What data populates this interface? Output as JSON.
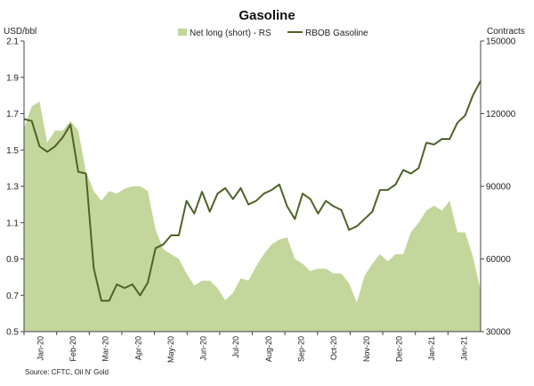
{
  "chart_data": {
    "type": "line",
    "title": "Gasoline",
    "ylabel_left": "USD/bbl",
    "ylabel_right": "Contracts",
    "ylim_left": [
      0.5,
      2.1
    ],
    "ylim_right": [
      30000,
      150000
    ],
    "yticks_left": [
      "2.1",
      "1.9",
      "1.7",
      "1.5",
      "1.3",
      "1.1",
      "0.9",
      "0.7",
      "0.5"
    ],
    "yticks_right": [
      "150000",
      "120000",
      "90000",
      "60000",
      "30000"
    ],
    "xticks": [
      "Jan-20",
      "Feb-20",
      "Mar-20",
      "Apr-20",
      "May-20",
      "Jun-20",
      "Jul-20",
      "Aug-20",
      "Sep-20",
      "Oct-20",
      "Nov-20",
      "Dec-20",
      "Jan-21",
      "Jan-21"
    ],
    "grid": false,
    "legend_position": "top-center",
    "series": [
      {
        "name": "Net long (short) - RS",
        "kind": "area",
        "axis": "right",
        "color": "#c3d69b",
        "values": [
          114000,
          123000,
          125000,
          108000,
          113000,
          113000,
          117000,
          113000,
          96000,
          88000,
          84000,
          88000,
          87000,
          89000,
          90000,
          90000,
          88000,
          72000,
          64000,
          62000,
          60000,
          54000,
          49000,
          51000,
          51000,
          48000,
          43000,
          46000,
          52000,
          51000,
          57000,
          62000,
          66000,
          68000,
          69000,
          60000,
          58000,
          55000,
          56000,
          56000,
          54000,
          54000,
          50000,
          42000,
          53000,
          58000,
          62000,
          59000,
          62000,
          62000,
          71000,
          75000,
          80000,
          82000,
          80000,
          84000,
          71000,
          71000,
          61000,
          47000
        ]
      },
      {
        "name": "RBOB Gasoline",
        "kind": "line",
        "axis": "left",
        "color": "#4f6228",
        "values": [
          1.67,
          1.66,
          1.52,
          1.49,
          1.52,
          1.57,
          1.64,
          1.38,
          1.37,
          0.85,
          0.67,
          0.67,
          0.76,
          0.74,
          0.76,
          0.7,
          0.77,
          0.96,
          0.98,
          1.03,
          1.03,
          1.22,
          1.15,
          1.27,
          1.16,
          1.26,
          1.29,
          1.23,
          1.29,
          1.2,
          1.22,
          1.26,
          1.28,
          1.31,
          1.19,
          1.12,
          1.26,
          1.23,
          1.15,
          1.22,
          1.19,
          1.17,
          1.06,
          1.08,
          1.12,
          1.16,
          1.28,
          1.28,
          1.31,
          1.39,
          1.37,
          1.4,
          1.54,
          1.53,
          1.56,
          1.56,
          1.65,
          1.69,
          1.8,
          1.88
        ]
      }
    ]
  },
  "source_note": "Source: CFTC, Oil N' Gold"
}
